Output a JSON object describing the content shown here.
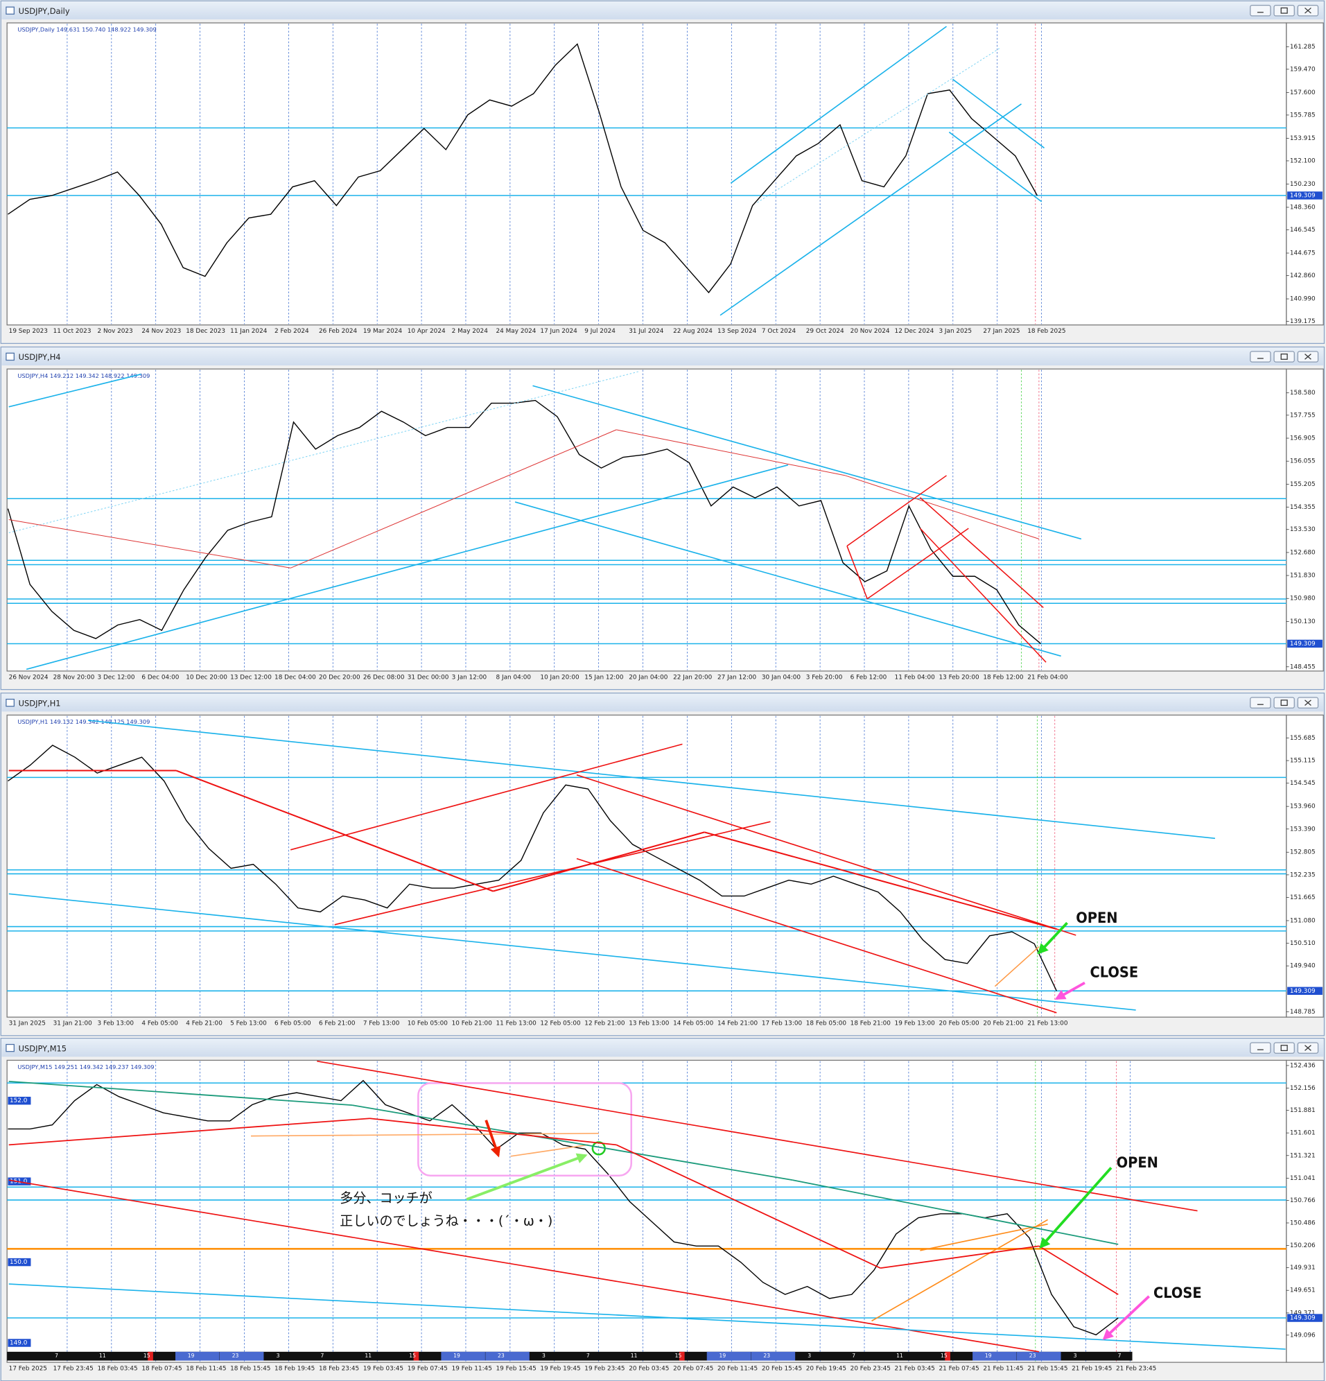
{
  "colors": {
    "price": "#000000",
    "level": "#1ab2ea",
    "orange_level": "#ff8c00",
    "current_box": "#1f4fd0"
  },
  "windows": [
    {
      "title": "USDJPY,Daily",
      "info": "USDJPY,Daily  149.631 150.740 148.922 149.309",
      "ylim": [
        138.96,
        163.13
      ],
      "yticks": [
        161.285,
        {
          "value": 159.47,
          "label": "159.470"
        },
        {
          "value": 157.6,
          "label": "157.600"
        },
        155.785,
        153.915,
        {
          "value": 152.1,
          "label": "152.100"
        },
        {
          "value": 150.23,
          "label": "150.230"
        },
        {
          "value": 148.36,
          "label": "148.360"
        },
        146.545,
        144.675,
        {
          "value": 142.86,
          "label": "142.860"
        },
        {
          "value": 140.99,
          "label": "140.990"
        },
        139.175
      ],
      "x_labels": [
        "19 Sep 2023",
        "11 Oct 2023",
        "2 Nov 2023",
        "24 Nov 2023",
        "18 Dec 2023",
        "11 Jan 2024",
        "2 Feb 2024",
        "26 Feb 2024",
        "19 Mar 2024",
        "10 Apr 2024",
        "2 May 2024",
        "24 May 2024",
        "17 Jun 2024",
        "9 Jul 2024",
        "31 Jul 2024",
        "22 Aug 2024",
        "13 Sep 2024",
        "7 Oct 2024",
        "29 Oct 2024",
        "20 Nov 2024",
        "12 Dec 2024",
        "3 Jan 2025",
        "27 Jan 2025",
        "18 Feb 2025"
      ],
      "price": [
        147.8,
        149.0,
        149.3,
        149.9,
        150.5,
        151.2,
        149.3,
        147.0,
        143.5,
        142.8,
        145.5,
        147.5,
        147.8,
        150.0,
        150.5,
        148.5,
        150.8,
        151.3,
        153.0,
        154.7,
        153.0,
        155.8,
        157.0,
        156.5,
        157.5,
        159.8,
        161.5,
        156.0,
        150.0,
        146.5,
        145.5,
        143.5,
        141.5,
        143.8,
        148.5,
        150.5,
        152.5,
        153.5,
        155.0,
        150.5,
        150.0,
        152.5,
        157.5,
        157.8,
        155.5,
        154.0,
        152.5,
        149.309
      ],
      "current": 149.309,
      "levels": [
        154.75
      ]
    },
    {
      "title": "USDJPY,H4",
      "info": "USDJPY,H4  149.212 149.342 148.922 149.309",
      "ylim": [
        148.33,
        159.43
      ],
      "yticks": [
        {
          "value": 158.58,
          "label": "158.580"
        },
        157.755,
        156.905,
        156.055,
        155.205,
        154.355,
        {
          "value": 153.53,
          "label": "153.530"
        },
        {
          "value": 152.68,
          "label": "152.680"
        },
        {
          "value": 151.83,
          "label": "151.830"
        },
        {
          "value": 150.98,
          "label": "150.980"
        },
        {
          "value": 150.13,
          "label": "150.130"
        },
        148.455
      ],
      "x_labels": [
        "26 Nov 2024",
        "28 Nov 20:00",
        "3 Dec 12:00",
        "6 Dec 04:00",
        "10 Dec 20:00",
        "13 Dec 12:00",
        "18 Dec 04:00",
        "20 Dec 20:00",
        "26 Dec 08:00",
        "31 Dec 00:00",
        "3 Jan 12:00",
        "8 Jan 04:00",
        "10 Jan 20:00",
        "15 Jan 12:00",
        "20 Jan 04:00",
        "22 Jan 20:00",
        "27 Jan 12:00",
        "30 Jan 04:00",
        "3 Feb 20:00",
        "6 Feb 12:00",
        "11 Feb 04:00",
        "13 Feb 20:00",
        "18 Feb 12:00",
        "21 Feb 04:00"
      ],
      "price": [
        154.3,
        151.5,
        150.5,
        149.8,
        149.5,
        150.0,
        150.2,
        149.8,
        151.3,
        152.5,
        153.5,
        153.8,
        154.0,
        157.5,
        156.5,
        157.0,
        157.3,
        157.9,
        157.5,
        157.0,
        157.3,
        157.3,
        158.2,
        158.2,
        158.3,
        157.7,
        156.3,
        155.8,
        156.2,
        156.3,
        156.5,
        156.0,
        154.4,
        155.1,
        154.7,
        155.1,
        154.4,
        154.6,
        152.3,
        151.6,
        152.0,
        154.4,
        152.8,
        151.8,
        151.8,
        151.3,
        150.0,
        149.309
      ],
      "current": 149.309,
      "levels": [
        154.67,
        152.39,
        152.23,
        150.96,
        150.8
      ]
    },
    {
      "title": "USDJPY,H1",
      "info": "USDJPY,H1  149.132 149.342 149.125 149.309",
      "ylim": [
        148.67,
        156.24
      ],
      "yticks": [
        155.685,
        155.115,
        154.545,
        {
          "value": 153.96,
          "label": "153.960"
        },
        {
          "value": 153.39,
          "label": "153.390"
        },
        152.805,
        152.235,
        151.665,
        {
          "value": 151.08,
          "label": "151.080"
        },
        {
          "value": 150.51,
          "label": "150.510"
        },
        {
          "value": 149.94,
          "label": "149.940"
        },
        148.785
      ],
      "x_labels": [
        "31 Jan 2025",
        "31 Jan 21:00",
        "3 Feb 13:00",
        "4 Feb 05:00",
        "4 Feb 21:00",
        "5 Feb 13:00",
        "6 Feb 05:00",
        "6 Feb 21:00",
        "7 Feb 13:00",
        "10 Feb 05:00",
        "10 Feb 21:00",
        "11 Feb 13:00",
        "12 Feb 05:00",
        "12 Feb 21:00",
        "13 Feb 13:00",
        "14 Feb 05:00",
        "14 Feb 21:00",
        "17 Feb 13:00",
        "18 Feb 05:00",
        "18 Feb 21:00",
        "19 Feb 13:00",
        "20 Feb 05:00",
        "20 Feb 21:00",
        "21 Feb 13:00"
      ],
      "price": [
        154.6,
        155.0,
        155.5,
        155.2,
        154.8,
        155.0,
        155.2,
        154.6,
        153.6,
        152.9,
        152.4,
        152.5,
        152.0,
        151.4,
        151.3,
        151.7,
        151.6,
        151.4,
        152.0,
        151.9,
        151.9,
        152.0,
        152.1,
        152.6,
        153.8,
        154.5,
        154.4,
        153.6,
        153.0,
        152.7,
        152.4,
        152.1,
        151.7,
        151.7,
        151.9,
        152.1,
        152.0,
        152.2,
        152.0,
        151.8,
        151.3,
        150.6,
        150.1,
        150.0,
        150.7,
        150.8,
        150.5,
        149.309
      ],
      "current": 149.309,
      "levels": [
        154.69,
        152.36,
        152.26,
        150.93,
        150.82
      ],
      "annotations": [
        "OPEN",
        "CLOSE"
      ]
    },
    {
      "title": "USDJPY,M15",
      "info": "USDJPY,M15  149.251 149.342 149.237 149.309",
      "ylim": [
        148.77,
        152.49
      ],
      "yticks": [
        152.436,
        152.156,
        151.881,
        151.601,
        151.321,
        151.041,
        150.766,
        150.486,
        150.206,
        149.931,
        149.651,
        149.371,
        149.096
      ],
      "x_labels": [
        "17 Feb 2025",
        "17 Feb 23:45",
        "18 Feb 03:45",
        "18 Feb 07:45",
        "18 Feb 11:45",
        "18 Feb 15:45",
        "18 Feb 19:45",
        "18 Feb 23:45",
        "19 Feb 03:45",
        "19 Feb 07:45",
        "19 Feb 11:45",
        "19 Feb 15:45",
        "19 Feb 19:45",
        "19 Feb 23:45",
        "20 Feb 03:45",
        "20 Feb 07:45",
        "20 Feb 11:45",
        "20 Feb 15:45",
        "20 Feb 19:45",
        "20 Feb 23:45",
        "21 Feb 03:45",
        "21 Feb 07:45",
        "21 Feb 11:45",
        "21 Feb 15:45",
        "21 Feb 19:45",
        "21 Feb 23:45"
      ],
      "price": [
        151.65,
        151.65,
        151.7,
        152.0,
        152.2,
        152.05,
        151.95,
        151.85,
        151.8,
        151.75,
        151.75,
        151.95,
        152.05,
        152.1,
        152.05,
        152.0,
        152.25,
        151.95,
        151.85,
        151.75,
        151.95,
        151.7,
        151.4,
        151.6,
        151.6,
        151.45,
        151.4,
        151.1,
        150.75,
        150.5,
        150.25,
        150.2,
        150.2,
        150.0,
        149.75,
        149.6,
        149.7,
        149.55,
        149.6,
        149.9,
        150.35,
        150.55,
        150.6,
        150.6,
        150.55,
        150.6,
        150.3,
        149.6,
        149.2,
        149.1,
        149.309
      ],
      "current": 149.309,
      "levels": [
        152.22,
        150.93,
        150.77
      ],
      "orange_levels": [
        150.165
      ],
      "round_levels": [
        {
          "value": 152,
          "label": "152.0"
        },
        {
          "value": 151,
          "label": "151.0"
        },
        {
          "value": 150,
          "label": "150.0"
        },
        {
          "value": 149,
          "label": "149.0"
        }
      ],
      "session_hours": [
        7,
        11,
        15,
        19,
        23,
        3,
        7,
        11,
        15,
        19,
        23,
        3,
        7,
        11,
        15,
        19,
        23,
        3,
        7,
        11,
        15,
        19,
        23,
        3,
        7
      ],
      "annotations": [
        "多分、コッチが",
        "正しいのでしょうね・・・(´・ω・)",
        "OPEN",
        "CLOSE"
      ]
    }
  ]
}
